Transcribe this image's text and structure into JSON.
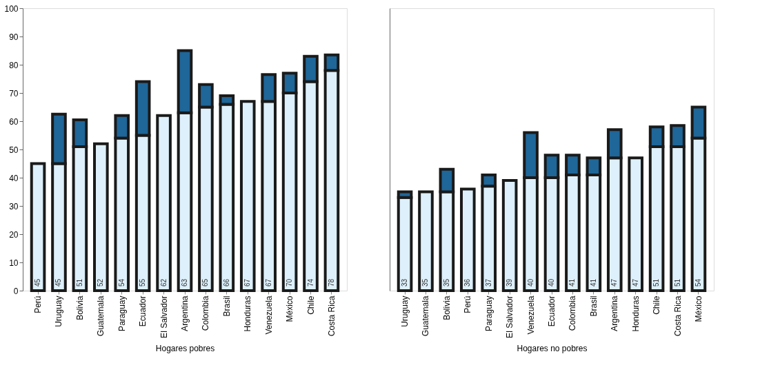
{
  "chart_data": [
    {
      "type": "bar",
      "stacked": true,
      "xlabel": "Hogares pobres",
      "ylim": [
        0,
        100
      ],
      "yticks": [
        0,
        10,
        20,
        30,
        40,
        50,
        60,
        70,
        80,
        90,
        100
      ],
      "grid": false,
      "legend": false,
      "categories": [
        "Perú",
        "Uruguay",
        "Bolivia",
        "Guatemala",
        "Paraguay",
        "Ecuador",
        "El Salvador",
        "Argentina",
        "Colombia",
        "Brasil",
        "Honduras",
        "Venezuela",
        "México",
        "Chile",
        "Costa Rica"
      ],
      "series": [
        {
          "color": "#ddf0fb",
          "values": [
            45,
            45,
            51,
            52,
            54,
            55,
            62,
            63,
            65,
            66,
            67,
            67,
            70,
            74,
            78
          ],
          "value_labels": [
            "45",
            "45",
            "51",
            "52",
            "54",
            "55",
            "62",
            "63",
            "65",
            "66",
            "67",
            "67",
            "70",
            "74",
            "78"
          ]
        },
        {
          "color": "#1f6699",
          "values": [
            null,
            17.5,
            9.5,
            null,
            8,
            19,
            null,
            22,
            8,
            3,
            null,
            9.5,
            7,
            9,
            5.5
          ]
        }
      ]
    },
    {
      "type": "bar",
      "stacked": true,
      "xlabel": "Hogares no pobres",
      "ylim": [
        0,
        100
      ],
      "yticks": [
        0,
        10,
        20,
        30,
        40,
        50,
        60,
        70,
        80,
        90,
        100
      ],
      "grid": false,
      "legend": false,
      "tick_labels": "x",
      "categories": [
        "Uruguay",
        "Guatemala",
        "Bolivia",
        "Perú",
        "Paraguay",
        "El Salvador",
        "Venezuela",
        "Ecuador",
        "Colombia",
        "Brasil",
        "Argentina",
        "Honduras",
        "Chile",
        "Costa Rica",
        "México"
      ],
      "series": [
        {
          "color": "#ddf0fb",
          "values": [
            33,
            35,
            35,
            36,
            37,
            39,
            40,
            40,
            41,
            41,
            47,
            47,
            51,
            51,
            54
          ],
          "value_labels": [
            "33",
            "35",
            "35",
            "36",
            "37",
            "39",
            "40",
            "40",
            "41",
            "41",
            "47",
            "47",
            "51",
            "51",
            "54"
          ]
        },
        {
          "color": "#1f6699",
          "values": [
            2,
            null,
            8,
            null,
            4,
            null,
            16,
            8,
            7,
            6,
            10,
            null,
            7,
            7.5,
            11
          ]
        }
      ]
    }
  ]
}
